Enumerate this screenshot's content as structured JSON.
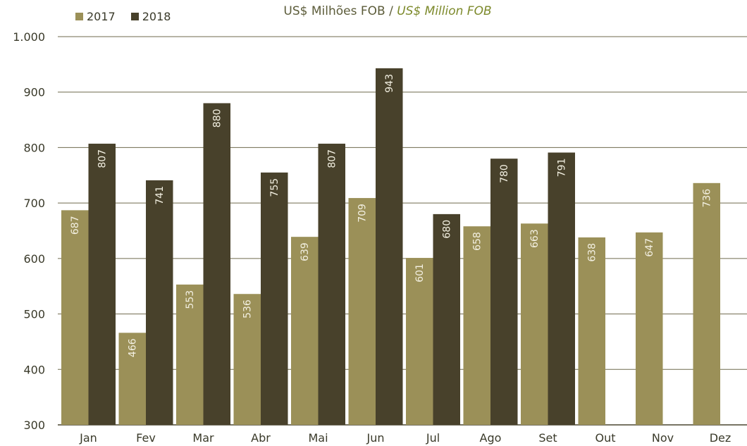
{
  "colors": {
    "s2017": "#9b9058",
    "s2018": "#48412b",
    "axis": "#4a4630",
    "grid": "#6f6a4e",
    "label_light": "#f3f0e2",
    "subtitle_main": "#5c5c3a",
    "subtitle_italic": "#7d8a2c"
  },
  "header": {
    "subtitle_main": "US$ Milhões FOB / ",
    "subtitle_italic": "US$ Million FOB"
  },
  "chart_data": {
    "type": "bar",
    "categories": [
      "Jan",
      "Fev",
      "Mar",
      "Abr",
      "Mai",
      "Jun",
      "Jul",
      "Ago",
      "Set",
      "Out",
      "Nov",
      "Dez"
    ],
    "series": [
      {
        "name": "2017",
        "values": [
          687,
          466,
          553,
          536,
          639,
          709,
          601,
          658,
          663,
          638,
          647,
          736
        ]
      },
      {
        "name": "2018",
        "values": [
          807,
          741,
          880,
          755,
          807,
          943,
          680,
          780,
          791,
          null,
          null,
          null
        ]
      }
    ],
    "ylim": [
      300,
      1000
    ],
    "yticks": [
      300,
      400,
      500,
      600,
      700,
      800,
      900,
      1000
    ],
    "ytick_labels": [
      "300",
      "400",
      "500",
      "600",
      "700",
      "800",
      "900",
      "1.000"
    ],
    "data_labels": true,
    "grid": "horizontal",
    "legend_position": "top-left"
  }
}
